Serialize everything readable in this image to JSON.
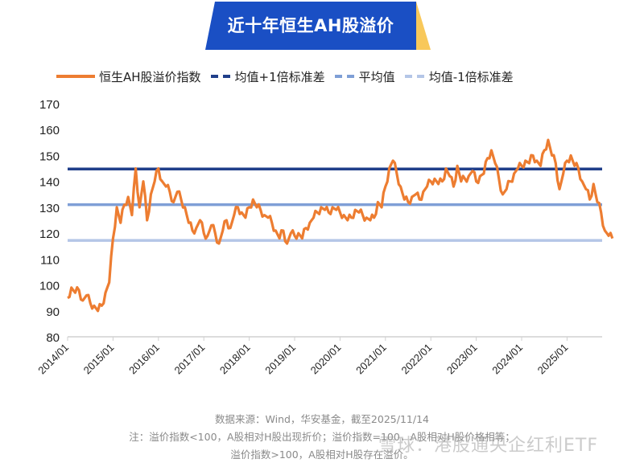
{
  "title": "近十年恒生AH股溢价",
  "colors": {
    "banner_blue": "#1a4fc4",
    "banner_accent": "#f8c85a",
    "series": "#ed7d31",
    "mean_plus_1sd": "#203f8a",
    "mean": "#7f9fd6",
    "mean_minus_1sd": "#b4c6e7",
    "axis": "#d0d0d0"
  },
  "legend": [
    {
      "label": "恒生AH股溢价指数",
      "color": "#ed7d31",
      "style": "solid"
    },
    {
      "label": "均值+1倍标准差",
      "color": "#203f8a",
      "style": "dash"
    },
    {
      "label": "平均值",
      "color": "#7f9fd6",
      "style": "dash"
    },
    {
      "label": "均值-1倍标准差",
      "color": "#b4c6e7",
      "style": "dash"
    }
  ],
  "chart_data": {
    "type": "line",
    "title": "近十年恒生AH股溢价",
    "xlabel": "",
    "ylabel": "",
    "ylim": [
      80,
      170
    ],
    "yticks": [
      80,
      90,
      100,
      110,
      120,
      130,
      140,
      150,
      160,
      170
    ],
    "xticks": [
      "2014/01",
      "2015/01",
      "2016/01",
      "2017/01",
      "2018/01",
      "2019/01",
      "2020/01",
      "2021/01",
      "2022/01",
      "2023/01",
      "2024/01",
      "2025/01"
    ],
    "grid": false,
    "legend_position": "top",
    "x_start": "2014/01",
    "x_end": "2025/11",
    "series": [
      {
        "name": "恒生AH股溢价指数",
        "frequency": "monthly",
        "values": [
          95,
          99,
          97,
          98,
          94,
          96,
          93,
          92,
          90,
          92,
          97,
          101,
          118,
          130,
          124,
          131,
          134,
          127,
          145,
          130,
          140,
          125,
          135,
          140,
          145,
          140,
          138,
          136,
          132,
          136,
          133,
          130,
          124,
          121,
          122,
          125,
          120,
          119,
          123,
          120,
          116,
          121,
          125,
          122,
          127,
          130,
          128,
          126,
          130,
          133,
          130,
          129,
          127,
          126,
          124,
          121,
          118,
          121,
          116,
          120,
          119,
          120,
          118,
          122,
          124,
          126,
          128,
          130,
          129,
          128,
          130,
          129,
          128,
          127,
          125,
          126,
          129,
          128,
          127,
          126,
          125,
          126,
          132,
          130,
          138,
          145,
          148,
          143,
          138,
          133,
          132,
          134,
          135,
          133,
          136,
          138,
          140,
          141,
          139,
          140,
          145,
          142,
          138,
          146,
          140,
          141,
          142,
          144,
          140,
          142,
          143,
          149,
          152,
          147,
          141,
          135,
          137,
          140,
          143,
          145,
          146,
          148,
          147,
          150,
          148,
          146,
          152,
          156,
          150,
          147,
          137,
          143,
          148,
          150,
          146,
          145,
          140,
          137,
          133,
          139,
          132,
          128,
          121,
          119,
          118
        ]
      },
      {
        "name": "均值+1倍标准差",
        "value": 144.8
      },
      {
        "name": "平均值",
        "value": 131.0
      },
      {
        "name": "均值-1倍标准差",
        "value": 117.2
      }
    ]
  },
  "footnotes": {
    "source": "数据来源：Wind，华安基金，截至2025/11/14",
    "note_line1": "注：溢价指数<100，A股相对H股出现折价；溢价指数=100，A股相对H股价格相等；",
    "note_line2": "溢价指数>100，A股相对H股存在溢价。"
  },
  "watermark": "雪球：港股通央企红利ETF"
}
